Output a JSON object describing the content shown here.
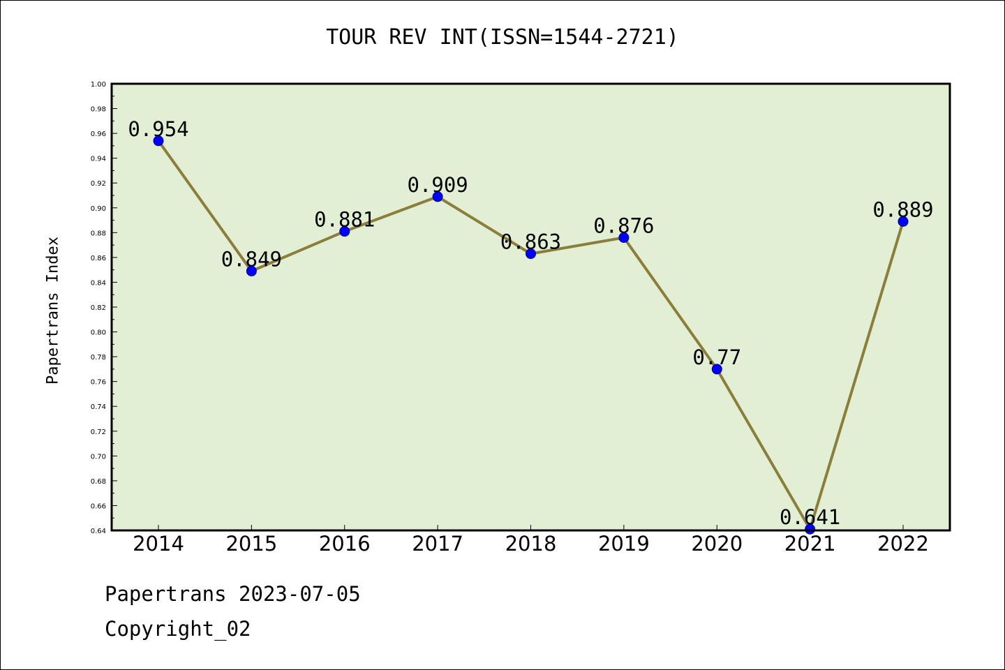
{
  "chart_data": {
    "type": "line",
    "title": "TOUR REV INT(ISSN=1544-2721)",
    "xlabel": "",
    "ylabel": "Papertrans Index",
    "categories": [
      "2014",
      "2015",
      "2016",
      "2017",
      "2018",
      "2019",
      "2020",
      "2021",
      "2022"
    ],
    "series": [
      {
        "values": [
          0.954,
          0.849,
          0.881,
          0.909,
          0.863,
          0.876,
          0.77,
          0.641,
          0.889
        ],
        "data_labels": [
          "0.954",
          "0.849",
          "0.881",
          "0.909",
          "0.863",
          "0.876",
          "0.77",
          "0.641",
          "0.889"
        ]
      }
    ],
    "ylim": [
      0.64,
      1.0
    ],
    "y_ticks": [
      "0.64",
      "0.66",
      "0.68",
      "0.70",
      "0.72",
      "0.74",
      "0.76",
      "0.78",
      "0.80",
      "0.82",
      "0.84",
      "0.86",
      "0.88",
      "0.90",
      "0.92",
      "0.94",
      "0.96",
      "0.98",
      "1.00"
    ],
    "grid": false,
    "legend": "none",
    "colors": {
      "plot_background": "#e2efd4",
      "line": "#8b7d3a",
      "marker": "#0000ff",
      "marker_edge": "#00008b"
    }
  },
  "footer": {
    "line1": "Papertrans 2023-07-05",
    "line2": "Copyright_02"
  }
}
